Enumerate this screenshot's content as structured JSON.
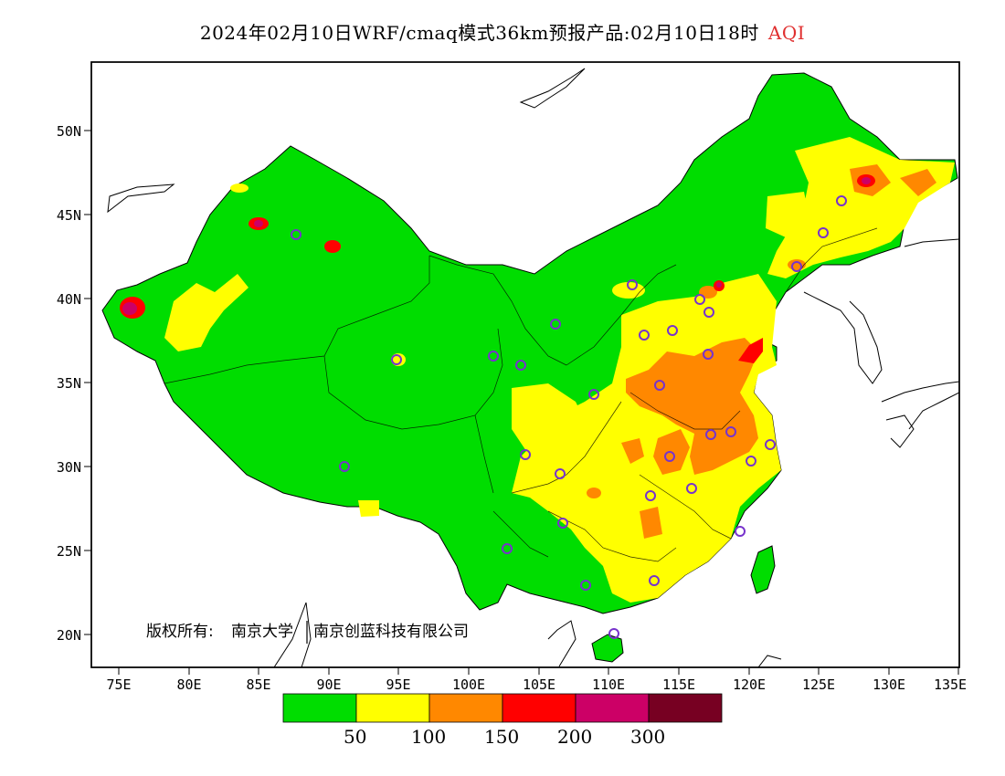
{
  "header": {
    "title": "2024年02月10日WRF/cmaq模式36km预报产品:02月10日18时",
    "variable": "AQI"
  },
  "axes": {
    "lat_labels": [
      "50N",
      "45N",
      "40N",
      "35N",
      "30N",
      "25N",
      "20N"
    ],
    "lon_labels": [
      "75E",
      "80E",
      "85E",
      "90E",
      "95E",
      "100E",
      "105E",
      "110E",
      "115E",
      "120E",
      "125E",
      "130E",
      "135E"
    ]
  },
  "copyright": {
    "label": "版权所有:",
    "org1": "南京大学",
    "org2": "南京创蓝科技有限公司"
  },
  "legend": {
    "colors": [
      "#00dd00",
      "#ffff00",
      "#ff8800",
      "#ff0000",
      "#cc0066",
      "#770022"
    ],
    "labels": [
      "50",
      "100",
      "150",
      "200",
      "300"
    ]
  },
  "map_data": {
    "extent_lon": [
      73,
      135
    ],
    "extent_lat": [
      18,
      54
    ],
    "land_color": "#ffffff",
    "station_color": "#7733cc"
  }
}
